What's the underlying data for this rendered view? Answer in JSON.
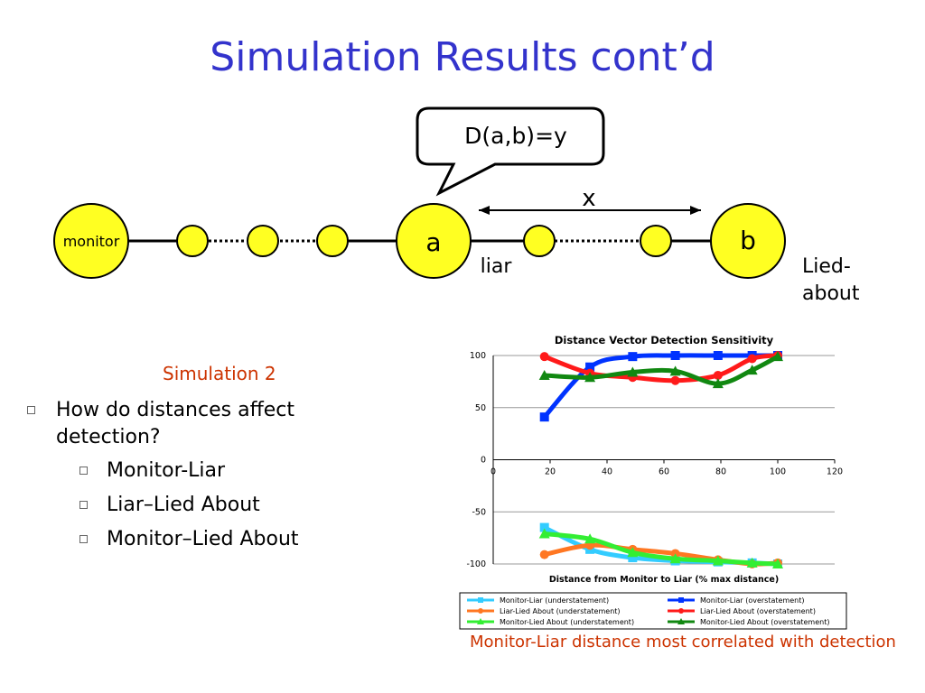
{
  "slide": {
    "title": "Simulation Results cont’d",
    "speech_bubble": "D(a,b)=y",
    "x_label": "x",
    "nodes": {
      "monitor": "monitor",
      "a": "a",
      "b": "b"
    },
    "labels": {
      "liar": "liar",
      "lied_about_1": "Lied-",
      "lied_about_2": "about"
    },
    "subtitle": "Simulation 2",
    "bullets": [
      {
        "text": "How do distances affect detection?",
        "level": 0
      },
      {
        "text": "Monitor-Liar",
        "level": 1
      },
      {
        "text": "Liar–Lied About",
        "level": 1
      },
      {
        "text": "Monitor–Lied About",
        "level": 1
      }
    ],
    "caption": "Monitor-Liar distance most correlated with detection"
  },
  "chart_data": {
    "type": "line",
    "title": "Distance Vector Detection Sensitivity",
    "xlabel": "Distance from Monitor to Liar (% max distance)",
    "ylabel": "",
    "xlim": [
      0,
      120
    ],
    "ylim": [
      -100,
      100
    ],
    "xticks": [
      "0",
      "20",
      "40",
      "60",
      "80",
      "100",
      "120"
    ],
    "yticks": [
      "100",
      "50",
      "0",
      "-50",
      "-100"
    ],
    "grid": "horizontal",
    "legend_position": "bottom",
    "series": [
      {
        "name": "Monitor-Liar (understatement)",
        "color": "#33ccff",
        "marker": "square",
        "points": [
          [
            18,
            -65
          ],
          [
            34,
            -86
          ],
          [
            49,
            -94
          ],
          [
            64,
            -97
          ],
          [
            79,
            -98
          ],
          [
            91,
            -99
          ],
          [
            100,
            -100
          ]
        ]
      },
      {
        "name": "Monitor-Liar (overstatement)",
        "color": "#0033ff",
        "marker": "square",
        "points": [
          [
            18,
            41
          ],
          [
            34,
            89
          ],
          [
            49,
            99
          ],
          [
            64,
            100
          ],
          [
            79,
            100
          ],
          [
            91,
            100
          ],
          [
            100,
            100
          ]
        ]
      },
      {
        "name": "Liar-Lied About (understatement)",
        "color": "#ff7722",
        "marker": "circle",
        "points": [
          [
            18,
            -91
          ],
          [
            34,
            -82
          ],
          [
            49,
            -86
          ],
          [
            64,
            -90
          ],
          [
            79,
            -96
          ],
          [
            91,
            -100
          ],
          [
            100,
            -99
          ]
        ]
      },
      {
        "name": "Liar-Lied About (overstatement)",
        "color": "#ff1a1a",
        "marker": "circle",
        "points": [
          [
            18,
            99
          ],
          [
            34,
            83
          ],
          [
            49,
            79
          ],
          [
            64,
            76
          ],
          [
            79,
            81
          ],
          [
            91,
            97
          ],
          [
            100,
            100
          ]
        ]
      },
      {
        "name": "Monitor-Lied About (understatement)",
        "color": "#33ee33",
        "marker": "triangle",
        "points": [
          [
            18,
            -71
          ],
          [
            34,
            -76
          ],
          [
            49,
            -89
          ],
          [
            64,
            -95
          ],
          [
            79,
            -97
          ],
          [
            91,
            -99
          ],
          [
            100,
            -100
          ]
        ]
      },
      {
        "name": "Monitor-Lied About (overstatement)",
        "color": "#118811",
        "marker": "triangle",
        "points": [
          [
            18,
            81
          ],
          [
            34,
            79
          ],
          [
            49,
            84
          ],
          [
            64,
            85
          ],
          [
            79,
            73
          ],
          [
            91,
            86
          ],
          [
            100,
            99
          ]
        ]
      }
    ]
  },
  "colors": {
    "title": "#3333cc",
    "accent": "#cc3300",
    "node_fill": "#ffff22"
  }
}
